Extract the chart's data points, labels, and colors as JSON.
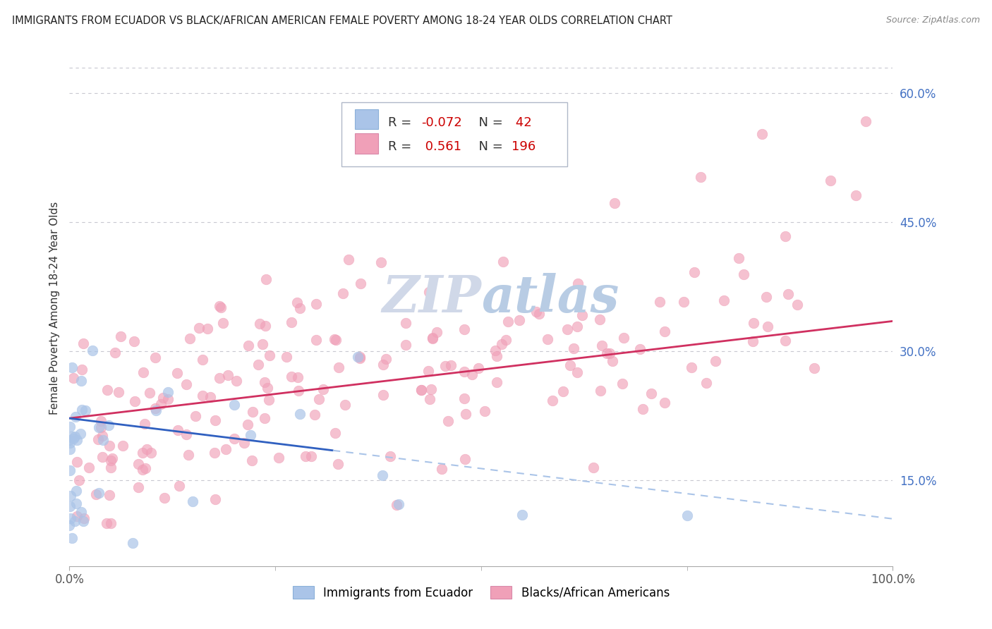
{
  "title": "IMMIGRANTS FROM ECUADOR VS BLACK/AFRICAN AMERICAN FEMALE POVERTY AMONG 18-24 YEAR OLDS CORRELATION CHART",
  "source": "Source: ZipAtlas.com",
  "ylabel": "Female Poverty Among 18-24 Year Olds",
  "xlim": [
    0,
    1.0
  ],
  "ylim": [
    0.05,
    0.65
  ],
  "yticks": [
    0.15,
    0.3,
    0.45,
    0.6
  ],
  "ytick_labels": [
    "15.0%",
    "30.0%",
    "45.0%",
    "60.0%"
  ],
  "xtick_labels": [
    "0.0%",
    "100.0%"
  ],
  "legend_R1": "-0.072",
  "legend_N1": "42",
  "legend_R2": "0.561",
  "legend_N2": "196",
  "color_blue": "#aac4e8",
  "color_pink": "#f0a0b8",
  "line_blue": "#3060c0",
  "line_pink": "#d03060",
  "background": "#ffffff",
  "grid_color": "#c8c8d0",
  "watermark_color": "#d0d8e8",
  "title_color": "#222222",
  "source_color": "#888888",
  "axis_label_color": "#333333",
  "ytick_color": "#4472C4",
  "legend_text_R1_color": "#cc0000",
  "legend_text_R2_color": "#cc0000"
}
